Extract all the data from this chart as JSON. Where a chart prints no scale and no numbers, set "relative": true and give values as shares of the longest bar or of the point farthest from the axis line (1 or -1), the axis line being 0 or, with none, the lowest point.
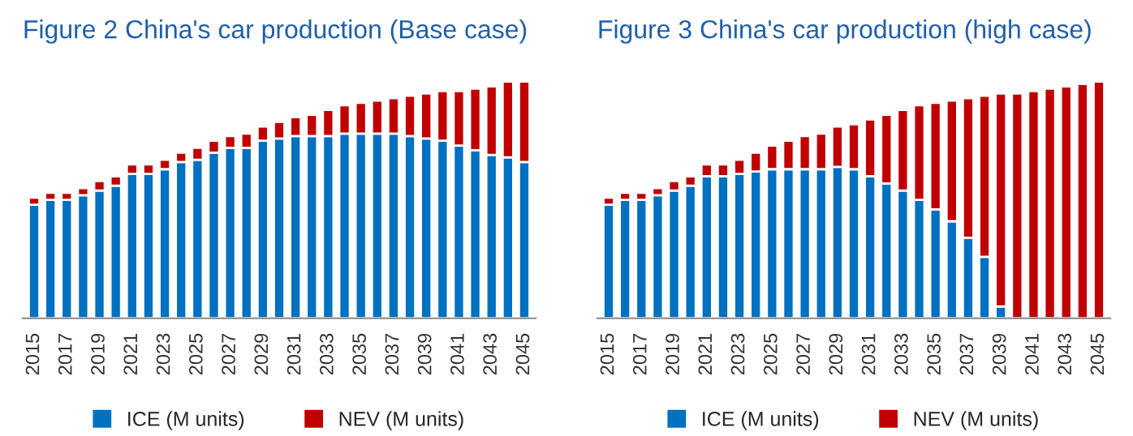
{
  "chart_data": [
    {
      "type": "bar",
      "title": "Figure 2 China's car production (Base case)",
      "stacked": true,
      "relative": true,
      "legend": "bottom",
      "tick_labels": "x",
      "categories": [
        "2015",
        null,
        "2017",
        null,
        "2019",
        null,
        "2021",
        null,
        "2023",
        null,
        "2025",
        null,
        "2027",
        null,
        "2029",
        null,
        "2031",
        null,
        "2033",
        null,
        "2035",
        null,
        "2037",
        null,
        "2039",
        null,
        "2041",
        null,
        "2043",
        null,
        "2045"
      ],
      "series": [
        {
          "name": "ICE (M units)",
          "color": "#0070c0",
          "values": [
            0.48,
            0.5,
            0.5,
            0.52,
            0.54,
            0.56,
            0.61,
            0.61,
            0.63,
            0.66,
            0.67,
            0.7,
            0.72,
            0.72,
            0.75,
            0.76,
            0.77,
            0.77,
            0.77,
            0.78,
            0.78,
            0.78,
            0.78,
            0.77,
            0.76,
            0.75,
            0.73,
            0.71,
            0.69,
            0.68,
            0.66
          ]
        },
        {
          "name": "NEV (M units)",
          "color": "#c00000",
          "values": [
            0.03,
            0.03,
            0.03,
            0.03,
            0.04,
            0.04,
            0.04,
            0.04,
            0.04,
            0.04,
            0.05,
            0.05,
            0.05,
            0.06,
            0.06,
            0.07,
            0.08,
            0.09,
            0.11,
            0.12,
            0.13,
            0.14,
            0.15,
            0.17,
            0.19,
            0.21,
            0.23,
            0.26,
            0.29,
            0.32,
            0.34
          ]
        }
      ]
    },
    {
      "type": "bar",
      "title": "Figure 3 China's car production (high case)",
      "stacked": true,
      "relative": true,
      "legend": "bottom",
      "tick_labels": "x",
      "categories": [
        "2015",
        null,
        "2017",
        null,
        "2019",
        null,
        "2021",
        null,
        "2023",
        null,
        "2025",
        null,
        "2027",
        null,
        "2029",
        null,
        "2031",
        null,
        "2033",
        null,
        "2035",
        null,
        "2037",
        null,
        "2039",
        null,
        "2041",
        null,
        "2043",
        null,
        "2045"
      ],
      "series": [
        {
          "name": "ICE (M units)",
          "color": "#0070c0",
          "values": [
            0.48,
            0.5,
            0.5,
            0.52,
            0.54,
            0.56,
            0.6,
            0.6,
            0.61,
            0.62,
            0.63,
            0.63,
            0.63,
            0.63,
            0.64,
            0.63,
            0.6,
            0.57,
            0.54,
            0.5,
            0.46,
            0.41,
            0.34,
            0.26,
            0.05,
            0,
            0,
            0,
            0,
            0,
            0
          ]
        },
        {
          "name": "NEV (M units)",
          "color": "#c00000",
          "values": [
            0.03,
            0.03,
            0.03,
            0.03,
            0.04,
            0.04,
            0.05,
            0.05,
            0.06,
            0.08,
            0.1,
            0.12,
            0.14,
            0.15,
            0.17,
            0.19,
            0.24,
            0.29,
            0.34,
            0.4,
            0.45,
            0.51,
            0.59,
            0.68,
            0.9,
            0.95,
            0.96,
            0.97,
            0.98,
            0.99,
            1.0
          ]
        }
      ]
    }
  ]
}
